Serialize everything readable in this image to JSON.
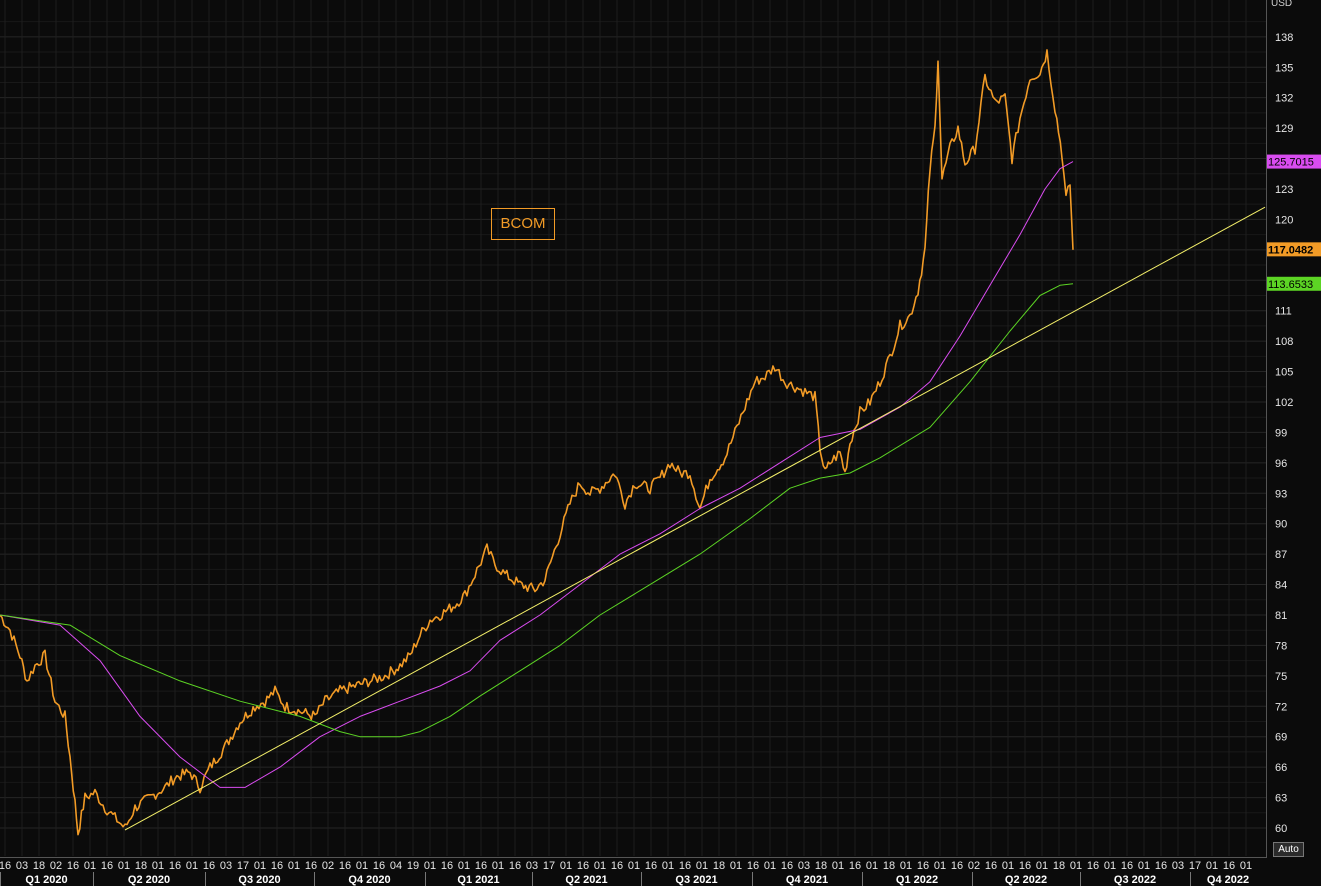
{
  "chart_data": {
    "type": "line",
    "title": "",
    "unit_label": "USD",
    "ticker": "BCOM",
    "ylim": [
      58,
      141
    ],
    "y_ticks": [
      60,
      63,
      66,
      69,
      72,
      75,
      78,
      81,
      84,
      87,
      90,
      93,
      96,
      99,
      102,
      105,
      108,
      111,
      114,
      117,
      120,
      123,
      126,
      129,
      132,
      135,
      138
    ],
    "day_ticks": [
      "16",
      "03",
      "18",
      "02",
      "16",
      "01",
      "16",
      "01",
      "18",
      "01",
      "16",
      "01",
      "16",
      "03",
      "17",
      "01",
      "16",
      "01",
      "16",
      "02",
      "16",
      "01",
      "16",
      "04",
      "19",
      "01",
      "16",
      "01",
      "16",
      "01",
      "16",
      "03",
      "17",
      "01",
      "16",
      "01",
      "16",
      "01",
      "16",
      "01",
      "16",
      "01",
      "18",
      "01",
      "16",
      "01",
      "16",
      "03",
      "18",
      "01",
      "16",
      "01",
      "18",
      "01",
      "16",
      "01",
      "16",
      "02",
      "16",
      "01",
      "16",
      "01",
      "18",
      "01",
      "16",
      "01",
      "16",
      "01",
      "16",
      "03",
      "17",
      "01",
      "16",
      "01"
    ],
    "quarter_labels": [
      "Q1 2020",
      "Q2 2020",
      "Q3 2020",
      "Q4 2020",
      "Q1 2021",
      "Q2 2021",
      "Q3 2021",
      "Q4 2021",
      "Q1 2022",
      "Q2 2022",
      "Q3 2022",
      "Q4 2022"
    ],
    "series": [
      {
        "name": "",
        "style": "price",
        "color": "#f29b26",
        "last_value": "117.0482",
        "points": [
          [
            0,
            81
          ],
          [
            10,
            79.5
          ],
          [
            20,
            77
          ],
          [
            27,
            74.5
          ],
          [
            35,
            76
          ],
          [
            45,
            77
          ],
          [
            55,
            72.5
          ],
          [
            65,
            71
          ],
          [
            70,
            67
          ],
          [
            75,
            62.5
          ],
          [
            78,
            59.5
          ],
          [
            85,
            63
          ],
          [
            95,
            63.5
          ],
          [
            105,
            62
          ],
          [
            115,
            61
          ],
          [
            125,
            60
          ],
          [
            135,
            62
          ],
          [
            150,
            63
          ],
          [
            165,
            64
          ],
          [
            175,
            65
          ],
          [
            190,
            65.5
          ],
          [
            200,
            64
          ],
          [
            210,
            66
          ],
          [
            225,
            68
          ],
          [
            240,
            70.5
          ],
          [
            255,
            72
          ],
          [
            265,
            72.5
          ],
          [
            275,
            73.5
          ],
          [
            285,
            72
          ],
          [
            300,
            71.5
          ],
          [
            315,
            71
          ],
          [
            325,
            72.5
          ],
          [
            340,
            73.5
          ],
          [
            355,
            74
          ],
          [
            370,
            74.5
          ],
          [
            385,
            75
          ],
          [
            400,
            76
          ],
          [
            410,
            77
          ],
          [
            420,
            79
          ],
          [
            430,
            80.5
          ],
          [
            440,
            81
          ],
          [
            455,
            82
          ],
          [
            465,
            83
          ],
          [
            475,
            85
          ],
          [
            487,
            87.5
          ],
          [
            495,
            86
          ],
          [
            505,
            85
          ],
          [
            520,
            84
          ],
          [
            535,
            83.5
          ],
          [
            545,
            84.5
          ],
          [
            560,
            89
          ],
          [
            570,
            92
          ],
          [
            580,
            94
          ],
          [
            590,
            93
          ],
          [
            600,
            93.5
          ],
          [
            615,
            95
          ],
          [
            625,
            92
          ],
          [
            635,
            94
          ],
          [
            650,
            93.5
          ],
          [
            660,
            94.5
          ],
          [
            670,
            96
          ],
          [
            680,
            95
          ],
          [
            690,
            95
          ],
          [
            700,
            91.5
          ],
          [
            710,
            94.5
          ],
          [
            725,
            96.5
          ],
          [
            735,
            99
          ],
          [
            745,
            101.5
          ],
          [
            755,
            104
          ],
          [
            765,
            104.5
          ],
          [
            775,
            105.5
          ],
          [
            785,
            104
          ],
          [
            795,
            103.5
          ],
          [
            805,
            103
          ],
          [
            815,
            102.5
          ],
          [
            820,
            97.5
          ],
          [
            825,
            95
          ],
          [
            830,
            96
          ],
          [
            840,
            97
          ],
          [
            845,
            95
          ],
          [
            850,
            98
          ],
          [
            860,
            101
          ],
          [
            870,
            102
          ],
          [
            880,
            104
          ],
          [
            890,
            106.5
          ],
          [
            900,
            109.5
          ],
          [
            910,
            110.5
          ],
          [
            918,
            113
          ],
          [
            925,
            117
          ],
          [
            930,
            125
          ],
          [
            935,
            129
          ],
          [
            938,
            136
          ],
          [
            942,
            124
          ],
          [
            950,
            127
          ],
          [
            958,
            129
          ],
          [
            965,
            125.5
          ],
          [
            975,
            127
          ],
          [
            985,
            134
          ],
          [
            995,
            131.5
          ],
          [
            1005,
            132
          ],
          [
            1012,
            126
          ],
          [
            1020,
            130
          ],
          [
            1030,
            134
          ],
          [
            1040,
            134.5
          ],
          [
            1047,
            136.5
          ],
          [
            1055,
            131
          ],
          [
            1062,
            126.5
          ],
          [
            1066,
            122
          ],
          [
            1070,
            123.5
          ],
          [
            1073,
            117
          ]
        ]
      },
      {
        "name": "",
        "style": "moving-average",
        "color": "#d94cf0",
        "last_value": "125.7015",
        "points": [
          [
            0,
            81
          ],
          [
            60,
            80
          ],
          [
            100,
            76.5
          ],
          [
            140,
            71
          ],
          [
            180,
            67
          ],
          [
            220,
            64
          ],
          [
            245,
            64
          ],
          [
            280,
            66
          ],
          [
            320,
            69
          ],
          [
            360,
            71
          ],
          [
            400,
            72.5
          ],
          [
            440,
            74
          ],
          [
            470,
            75.5
          ],
          [
            500,
            78.5
          ],
          [
            540,
            81
          ],
          [
            580,
            84
          ],
          [
            620,
            87
          ],
          [
            660,
            89
          ],
          [
            700,
            91.5
          ],
          [
            740,
            93.5
          ],
          [
            780,
            96
          ],
          [
            820,
            98.5
          ],
          [
            860,
            99.3
          ],
          [
            900,
            101.5
          ],
          [
            930,
            104
          ],
          [
            960,
            108.5
          ],
          [
            990,
            113.5
          ],
          [
            1020,
            118.5
          ],
          [
            1045,
            123
          ],
          [
            1060,
            125
          ],
          [
            1073,
            125.7
          ]
        ]
      },
      {
        "name": "",
        "style": "moving-average",
        "color": "#5cd424",
        "last_value": "113.6533",
        "points": [
          [
            0,
            81
          ],
          [
            70,
            80
          ],
          [
            120,
            77
          ],
          [
            180,
            74.5
          ],
          [
            240,
            72.5
          ],
          [
            300,
            71
          ],
          [
            340,
            69.5
          ],
          [
            360,
            69
          ],
          [
            400,
            69
          ],
          [
            420,
            69.5
          ],
          [
            450,
            71
          ],
          [
            480,
            73
          ],
          [
            520,
            75.5
          ],
          [
            560,
            78
          ],
          [
            600,
            81
          ],
          [
            650,
            84
          ],
          [
            700,
            87
          ],
          [
            750,
            90.5
          ],
          [
            790,
            93.5
          ],
          [
            820,
            94.5
          ],
          [
            850,
            95
          ],
          [
            880,
            96.5
          ],
          [
            930,
            99.5
          ],
          [
            970,
            104
          ],
          [
            1010,
            109
          ],
          [
            1040,
            112.5
          ],
          [
            1060,
            113.5
          ],
          [
            1073,
            113.65
          ]
        ]
      },
      {
        "name": "",
        "style": "trendline",
        "color": "#f4f06a",
        "points": [
          [
            125,
            59.8
          ],
          [
            1265,
            121.2
          ]
        ]
      }
    ],
    "grid": true,
    "legend": "none"
  },
  "controls": {
    "auto_label": "Auto"
  }
}
